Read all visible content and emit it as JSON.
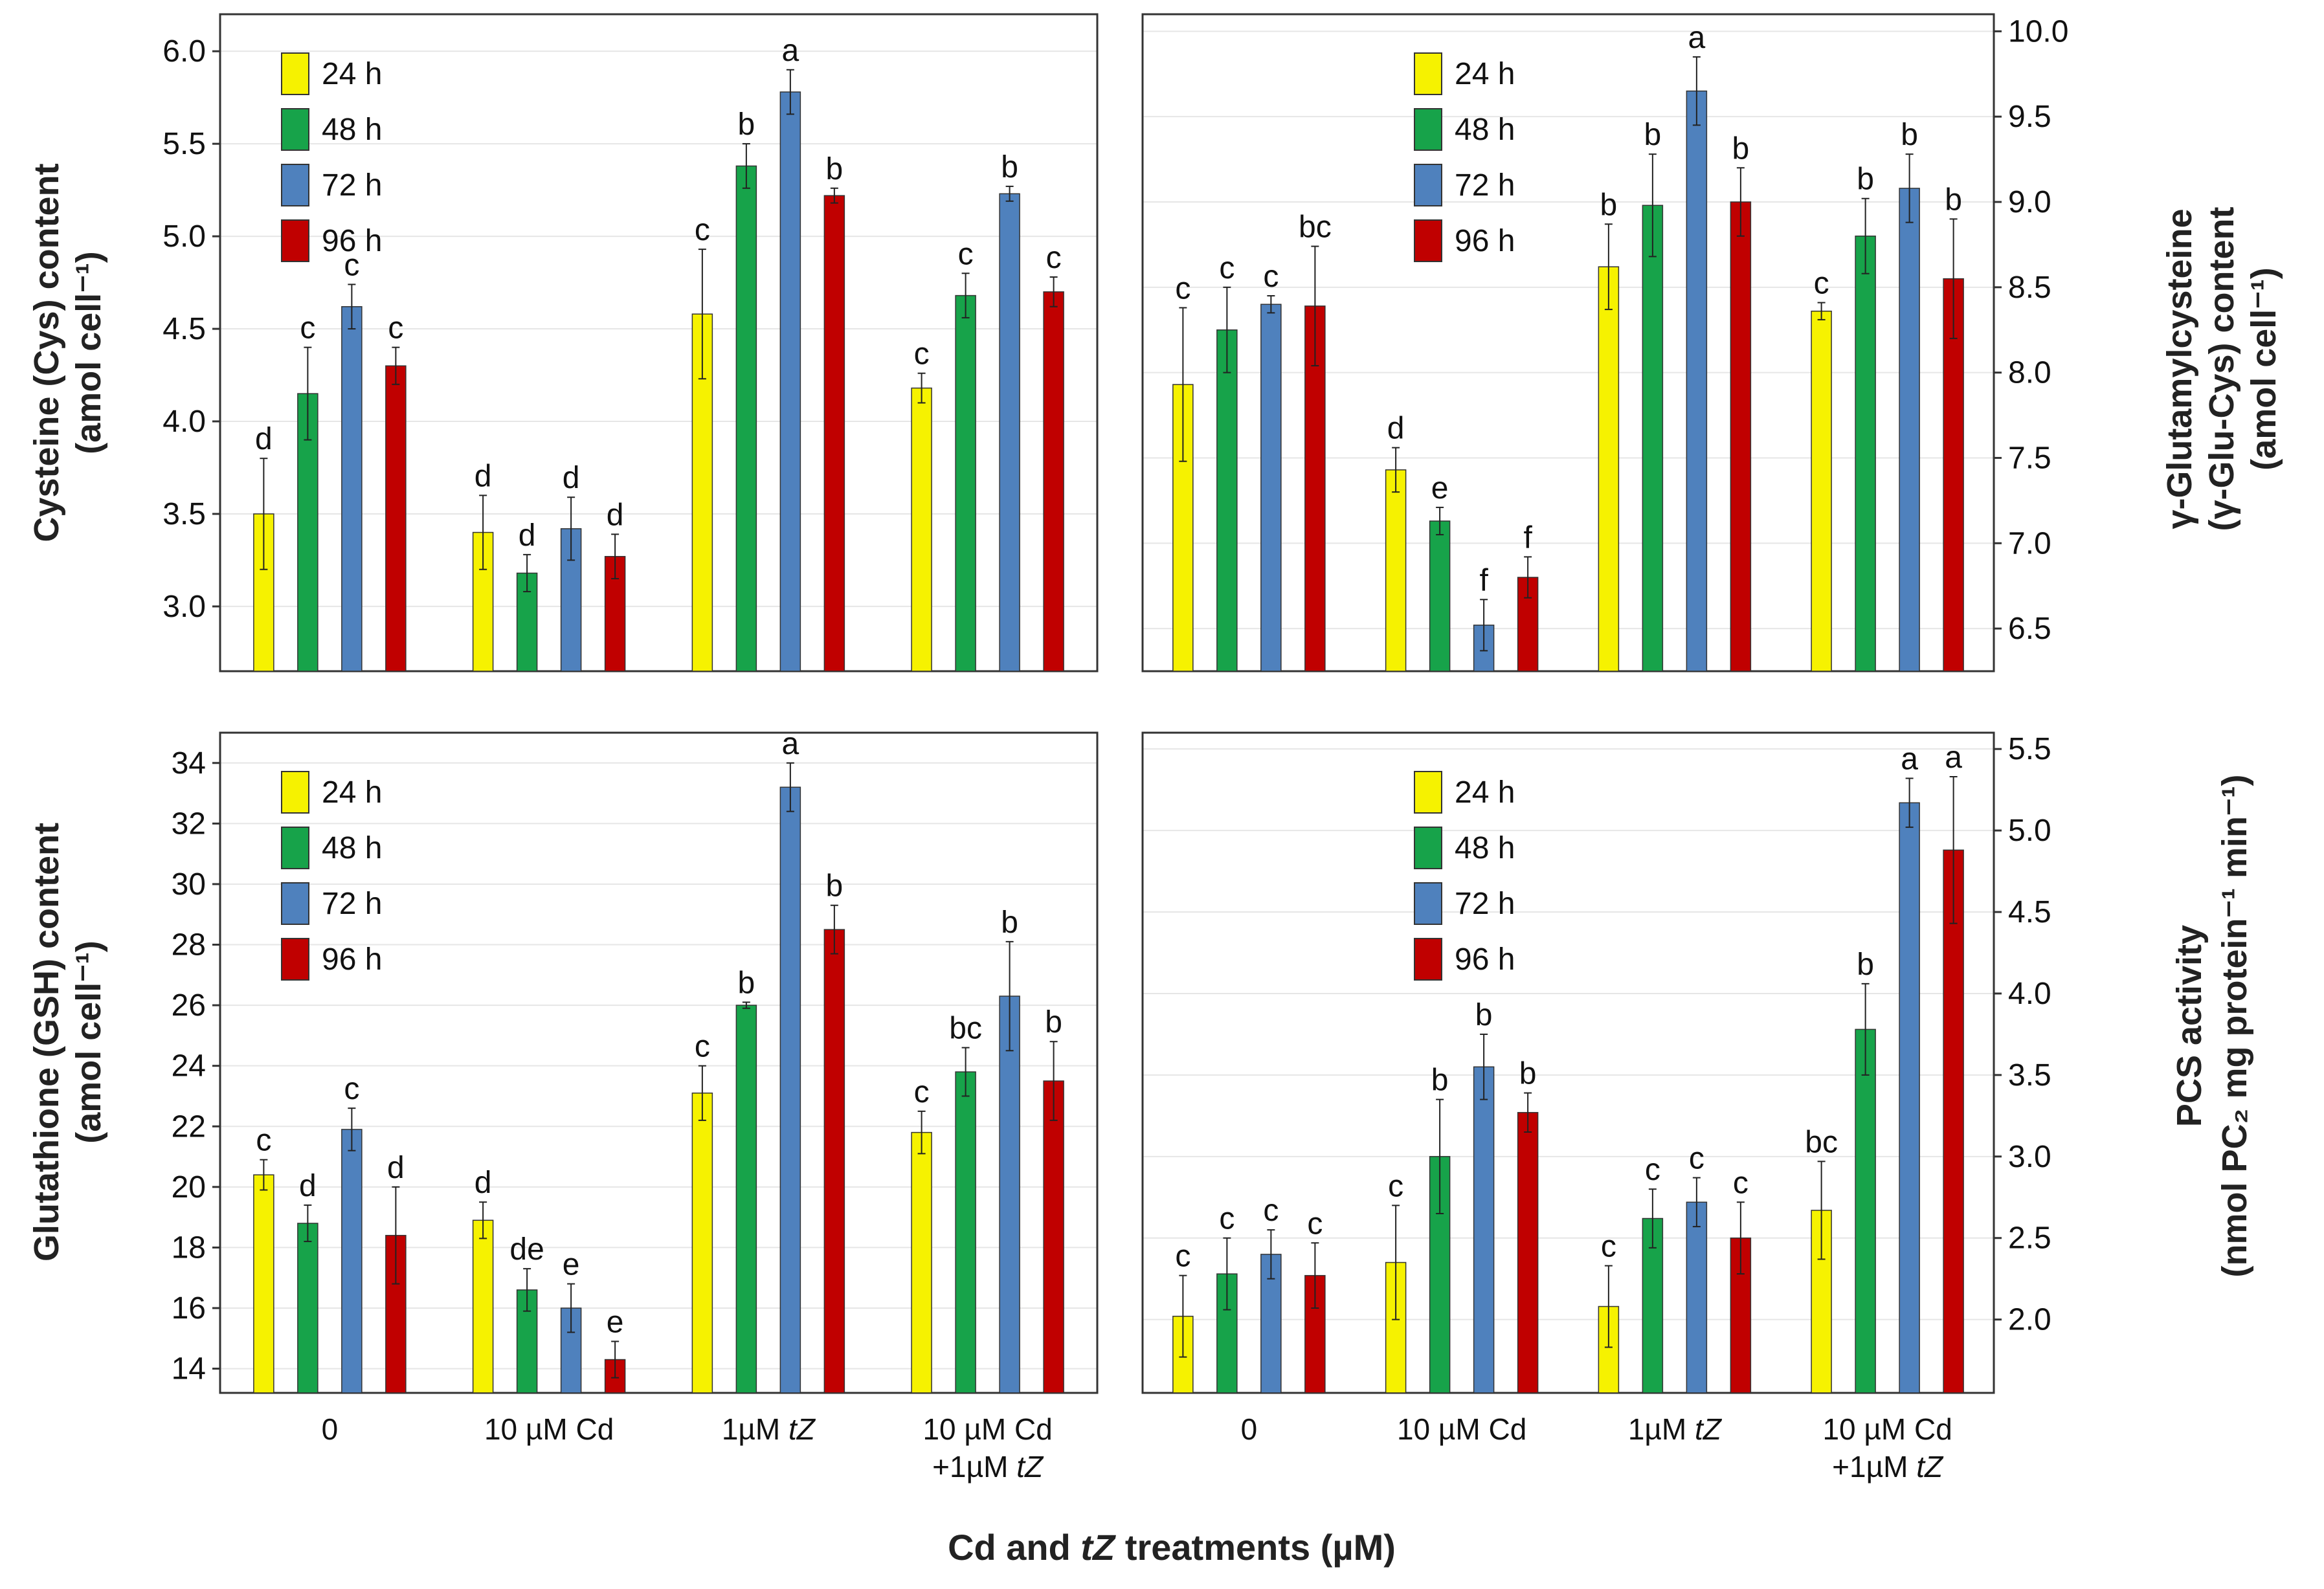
{
  "figure": {
    "x_title": "Cd and tZ treatments (µM)",
    "x_title_parts": [
      "Cd and ",
      "tZ",
      " treatments (µM)"
    ]
  },
  "colors": {
    "24 h": "#f6f200",
    "48 h": "#17a34a",
    "72 h": "#4f81bd",
    "96 h": "#c00000",
    "grid": "#e6e6e6",
    "axis": "#333333"
  },
  "chart_data": [
    {
      "id": "cys",
      "type": "bar",
      "title": "",
      "ylabel": "Cysteine (Cys) content",
      "ylabel2": "(amol cell⁻¹)",
      "xlabel": "",
      "ylim": [
        2.65,
        6.2
      ],
      "yticks": [
        3.0,
        3.5,
        4.0,
        4.5,
        5.0,
        5.5,
        6.0
      ],
      "ytick_labels": [
        "3.0",
        "3.5",
        "4.0",
        "4.5",
        "5.0",
        "5.5",
        "6.0"
      ],
      "y_axis_side": "left",
      "categories": [
        "0",
        "10 µM Cd",
        "1µM tZ",
        "10 µM Cd +1µM tZ"
      ],
      "category_labels": [
        [
          "0"
        ],
        [
          "10 µM Cd"
        ],
        [
          "1µM tZ"
        ],
        [
          "10 µM Cd",
          "+1µM tZ"
        ]
      ],
      "legend": [
        "24 h",
        "48 h",
        "72 h",
        "96 h"
      ],
      "legend_position": "top-left",
      "grid": true,
      "series": [
        {
          "name": "24 h",
          "values": [
            3.5,
            3.4,
            4.58,
            4.18
          ],
          "errors": [
            0.3,
            0.2,
            0.35,
            0.08
          ],
          "letters": [
            "d",
            "d",
            "c",
            "c"
          ]
        },
        {
          "name": "48 h",
          "values": [
            4.15,
            3.18,
            5.38,
            4.68
          ],
          "errors": [
            0.25,
            0.1,
            0.12,
            0.12
          ],
          "letters": [
            "c",
            "d",
            "b",
            "c"
          ]
        },
        {
          "name": "72 h",
          "values": [
            4.62,
            3.42,
            5.78,
            5.23
          ],
          "errors": [
            0.12,
            0.17,
            0.12,
            0.04
          ],
          "letters": [
            "c",
            "d",
            "a",
            "b"
          ]
        },
        {
          "name": "96 h",
          "values": [
            4.3,
            3.27,
            5.22,
            4.7
          ],
          "errors": [
            0.1,
            0.12,
            0.04,
            0.08
          ],
          "letters": [
            "c",
            "d",
            "b",
            "c"
          ]
        }
      ]
    },
    {
      "id": "gec",
      "type": "bar",
      "title": "",
      "ylabel": "γ-Glutamylcysteine",
      "ylabel2": "(γ-Glu-Cys) content",
      "ylabel3": "(amol cell⁻¹)",
      "xlabel": "",
      "ylim": [
        6.25,
        10.1
      ],
      "yticks": [
        6.5,
        7.0,
        7.5,
        8.0,
        8.5,
        9.0,
        9.5,
        10.0
      ],
      "ytick_labels": [
        "6.5",
        "7.0",
        "7.5",
        "8.0",
        "8.5",
        "9.0",
        "9.5",
        "10.0"
      ],
      "y_axis_side": "right",
      "categories": [
        "0",
        "10 µM Cd",
        "1µM tZ",
        "10 µM Cd +1µM tZ"
      ],
      "category_labels": [
        [
          "0"
        ],
        [
          "10 µM Cd"
        ],
        [
          "1µM tZ"
        ],
        [
          "10 µM Cd",
          "+1µM tZ"
        ]
      ],
      "legend": [
        "24 h",
        "48 h",
        "72 h",
        "96 h"
      ],
      "legend_position": "top-left",
      "grid": true,
      "series": [
        {
          "name": "24 h",
          "values": [
            7.93,
            7.43,
            8.62,
            8.36
          ],
          "errors": [
            0.45,
            0.13,
            0.25,
            0.05
          ],
          "letters": [
            "c",
            "d",
            "b",
            "c"
          ]
        },
        {
          "name": "48 h",
          "values": [
            8.25,
            7.13,
            8.98,
            8.8
          ],
          "errors": [
            0.25,
            0.08,
            0.3,
            0.22
          ],
          "letters": [
            "c",
            "e",
            "b",
            "b"
          ]
        },
        {
          "name": "72 h",
          "values": [
            8.4,
            6.52,
            9.65,
            9.08
          ],
          "errors": [
            0.05,
            0.15,
            0.2,
            0.2
          ],
          "letters": [
            "c",
            "f",
            "a",
            "b"
          ]
        },
        {
          "name": "96 h",
          "values": [
            8.39,
            6.8,
            9.0,
            8.55
          ],
          "errors": [
            0.35,
            0.12,
            0.2,
            0.35
          ],
          "letters": [
            "bc",
            "f",
            "b",
            "b"
          ]
        }
      ]
    },
    {
      "id": "gsh",
      "type": "bar",
      "title": "",
      "ylabel": "Glutathione (GSH) content",
      "ylabel2": "(amol cell⁻¹)",
      "xlabel": "",
      "ylim": [
        13.2,
        35.0
      ],
      "yticks": [
        14,
        16,
        18,
        20,
        22,
        24,
        26,
        28,
        30,
        32,
        34
      ],
      "ytick_labels": [
        "14",
        "16",
        "18",
        "20",
        "22",
        "24",
        "26",
        "28",
        "30",
        "32",
        "34"
      ],
      "y_axis_side": "left",
      "categories": [
        "0",
        "10 µM Cd",
        "1µM tZ",
        "10 µM Cd +1µM tZ"
      ],
      "category_labels": [
        [
          "0"
        ],
        [
          "10 µM Cd"
        ],
        [
          "1µM tZ"
        ],
        [
          "10 µM Cd",
          "+1µM tZ"
        ]
      ],
      "legend": [
        "24 h",
        "48 h",
        "72 h",
        "96 h"
      ],
      "legend_position": "top-left",
      "grid": true,
      "series": [
        {
          "name": "24 h",
          "values": [
            20.4,
            18.9,
            23.1,
            21.8
          ],
          "errors": [
            0.5,
            0.6,
            0.9,
            0.7
          ],
          "letters": [
            "c",
            "d",
            "c",
            "c"
          ]
        },
        {
          "name": "48 h",
          "values": [
            18.8,
            16.6,
            26.0,
            23.8
          ],
          "errors": [
            0.6,
            0.7,
            0.1,
            0.8
          ],
          "letters": [
            "d",
            "de",
            "b",
            "bc"
          ]
        },
        {
          "name": "72 h",
          "values": [
            21.9,
            16.0,
            33.2,
            26.3
          ],
          "errors": [
            0.7,
            0.8,
            0.8,
            1.8
          ],
          "letters": [
            "c",
            "e",
            "a",
            "b"
          ]
        },
        {
          "name": "96 h",
          "values": [
            18.4,
            14.3,
            28.5,
            23.5
          ],
          "errors": [
            1.6,
            0.6,
            0.8,
            1.3
          ],
          "letters": [
            "d",
            "e",
            "b",
            "b"
          ]
        }
      ]
    },
    {
      "id": "pcs",
      "type": "bar",
      "title": "",
      "ylabel": "PCS activity",
      "ylabel2": "(nmol PC₂ mg protein⁻¹ min⁻¹)",
      "xlabel": "",
      "ylim": [
        1.55,
        5.6
      ],
      "yticks": [
        2.0,
        2.5,
        3.0,
        3.5,
        4.0,
        4.5,
        5.0,
        5.5
      ],
      "ytick_labels": [
        "2.0",
        "2.5",
        "3.0",
        "3.5",
        "4.0",
        "4.5",
        "5.0",
        "5.5"
      ],
      "y_axis_side": "right",
      "categories": [
        "0",
        "10 µM Cd",
        "1µM tZ",
        "10 µM Cd +1µM tZ"
      ],
      "category_labels": [
        [
          "0"
        ],
        [
          "10 µM Cd"
        ],
        [
          "1µM tZ"
        ],
        [
          "10 µM Cd",
          "+1µM tZ"
        ]
      ],
      "legend": [
        "24 h",
        "48 h",
        "72 h",
        "96 h"
      ],
      "legend_position": "top-left",
      "grid": true,
      "series": [
        {
          "name": "24 h",
          "values": [
            2.02,
            2.35,
            2.08,
            2.67
          ],
          "errors": [
            0.25,
            0.35,
            0.25,
            0.3
          ],
          "letters": [
            "c",
            "c",
            "c",
            "bc"
          ]
        },
        {
          "name": "48 h",
          "values": [
            2.28,
            3.0,
            2.62,
            3.78
          ],
          "errors": [
            0.22,
            0.35,
            0.18,
            0.28
          ],
          "letters": [
            "c",
            "b",
            "c",
            "b"
          ]
        },
        {
          "name": "72 h",
          "values": [
            2.4,
            3.55,
            2.72,
            5.17
          ],
          "errors": [
            0.15,
            0.2,
            0.15,
            0.15
          ],
          "letters": [
            "c",
            "b",
            "c",
            "a"
          ]
        },
        {
          "name": "96 h",
          "values": [
            2.27,
            3.27,
            2.5,
            4.88
          ],
          "errors": [
            0.2,
            0.12,
            0.22,
            0.45
          ],
          "letters": [
            "c",
            "b",
            "c",
            "a"
          ]
        }
      ]
    }
  ]
}
